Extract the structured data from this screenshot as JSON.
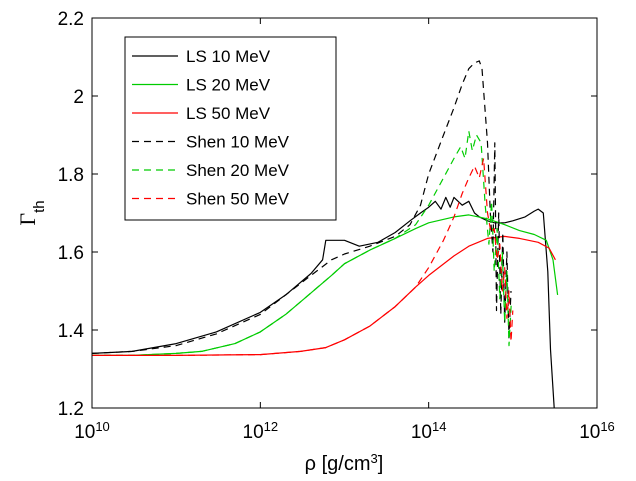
{
  "chart_data": {
    "type": "line",
    "xlabel_base": "ρ [g/cm",
    "xlabel_sup": "3",
    "xlabel_tail": "]",
    "ylabel_main": "Γ",
    "ylabel_sub": "th",
    "x_scale": "log",
    "xlim": [
      10000000000.0,
      1e+16
    ],
    "ylim": [
      1.2,
      2.2
    ],
    "x_ticks": [
      {
        "value": 10000000000.0,
        "base": "10",
        "exp": "10"
      },
      {
        "value": 1000000000000.0,
        "base": "10",
        "exp": "12"
      },
      {
        "value": 100000000000000.0,
        "base": "10",
        "exp": "14"
      },
      {
        "value": 1e+16,
        "base": "10",
        "exp": "16"
      }
    ],
    "y_ticks": [
      {
        "value": 1.2,
        "label": "1.2"
      },
      {
        "value": 1.4,
        "label": "1.4"
      },
      {
        "value": 1.6,
        "label": "1.6"
      },
      {
        "value": 1.8,
        "label": "1.8"
      },
      {
        "value": 2.0,
        "label": "2"
      },
      {
        "value": 2.2,
        "label": "2.2"
      }
    ],
    "grid": false,
    "legend_position": "top-left",
    "series": [
      {
        "name": "LS 10 MeV",
        "color": "#000000",
        "dash": "solid",
        "points": [
          [
            10000000000.0,
            1.34
          ],
          [
            30000000000.0,
            1.345
          ],
          [
            100000000000.0,
            1.365
          ],
          [
            300000000000.0,
            1.395
          ],
          [
            1000000000000.0,
            1.445
          ],
          [
            2000000000000.0,
            1.49
          ],
          [
            4000000000000.0,
            1.545
          ],
          [
            5500000000000.0,
            1.58
          ],
          [
            6000000000000.0,
            1.63
          ],
          [
            10000000000000.0,
            1.63
          ],
          [
            15000000000000.0,
            1.615
          ],
          [
            25000000000000.0,
            1.625
          ],
          [
            40000000000000.0,
            1.65
          ],
          [
            60000000000000.0,
            1.68
          ],
          [
            80000000000000.0,
            1.7
          ],
          [
            100000000000000.0,
            1.715
          ],
          [
            120000000000000.0,
            1.73
          ],
          [
            140000000000000.0,
            1.71
          ],
          [
            160000000000000.0,
            1.74
          ],
          [
            180000000000000.0,
            1.715
          ],
          [
            200000000000000.0,
            1.74
          ],
          [
            250000000000000.0,
            1.72
          ],
          [
            300000000000000.0,
            1.73
          ],
          [
            350000000000000.0,
            1.7
          ],
          [
            400000000000000.0,
            1.69
          ],
          [
            500000000000000.0,
            1.68
          ],
          [
            600000000000000.0,
            1.675
          ],
          [
            700000000000000.0,
            1.675
          ],
          [
            800000000000000.0,
            1.675
          ],
          [
            1000000000000000.0,
            1.68
          ],
          [
            1400000000000000.0,
            1.69
          ],
          [
            1800000000000000.0,
            1.705
          ],
          [
            2000000000000000.0,
            1.71
          ],
          [
            2300000000000000.0,
            1.7
          ],
          [
            2600000000000000.0,
            1.55
          ],
          [
            2800000000000000.0,
            1.35
          ],
          [
            3100000000000000.0,
            1.2
          ]
        ]
      },
      {
        "name": "LS 20 MeV",
        "color": "#00cc00",
        "dash": "solid",
        "points": [
          [
            10000000000.0,
            1.335
          ],
          [
            30000000000.0,
            1.335
          ],
          [
            100000000000.0,
            1.34
          ],
          [
            200000000000.0,
            1.345
          ],
          [
            500000000000.0,
            1.365
          ],
          [
            1000000000000.0,
            1.395
          ],
          [
            2000000000000.0,
            1.44
          ],
          [
            4000000000000.0,
            1.495
          ],
          [
            7000000000000.0,
            1.54
          ],
          [
            10000000000000.0,
            1.57
          ],
          [
            20000000000000.0,
            1.605
          ],
          [
            40000000000000.0,
            1.635
          ],
          [
            70000000000000.0,
            1.66
          ],
          [
            100000000000000.0,
            1.675
          ],
          [
            200000000000000.0,
            1.69
          ],
          [
            300000000000000.0,
            1.695
          ],
          [
            500000000000000.0,
            1.685
          ],
          [
            800000000000000.0,
            1.67
          ],
          [
            1200000000000000.0,
            1.655
          ],
          [
            1800000000000000.0,
            1.645
          ],
          [
            2500000000000000.0,
            1.63
          ],
          [
            3000000000000000.0,
            1.58
          ],
          [
            3400000000000000.0,
            1.49
          ]
        ]
      },
      {
        "name": "LS 50 MeV",
        "color": "#ff0000",
        "dash": "solid",
        "points": [
          [
            10000000000.0,
            1.335
          ],
          [
            100000000000.0,
            1.335
          ],
          [
            1000000000000.0,
            1.337
          ],
          [
            3000000000000.0,
            1.345
          ],
          [
            6000000000000.0,
            1.355
          ],
          [
            10000000000000.0,
            1.375
          ],
          [
            20000000000000.0,
            1.41
          ],
          [
            40000000000000.0,
            1.46
          ],
          [
            70000000000000.0,
            1.51
          ],
          [
            100000000000000.0,
            1.54
          ],
          [
            200000000000000.0,
            1.59
          ],
          [
            300000000000000.0,
            1.615
          ],
          [
            500000000000000.0,
            1.635
          ],
          [
            800000000000000.0,
            1.64
          ],
          [
            1200000000000000.0,
            1.635
          ],
          [
            2000000000000000.0,
            1.625
          ],
          [
            2700000000000000.0,
            1.61
          ],
          [
            3200000000000000.0,
            1.58
          ]
        ]
      },
      {
        "name": "Shen 10 MeV",
        "color": "#000000",
        "dash": "7,5",
        "points": [
          [
            10000000000.0,
            1.34
          ],
          [
            30000000000.0,
            1.345
          ],
          [
            100000000000.0,
            1.36
          ],
          [
            300000000000.0,
            1.39
          ],
          [
            1000000000000.0,
            1.44
          ],
          [
            2000000000000.0,
            1.49
          ],
          [
            4000000000000.0,
            1.54
          ],
          [
            7000000000000.0,
            1.58
          ],
          [
            10000000000000.0,
            1.595
          ],
          [
            20000000000000.0,
            1.615
          ],
          [
            40000000000000.0,
            1.64
          ],
          [
            60000000000000.0,
            1.67
          ],
          [
            80000000000000.0,
            1.72
          ],
          [
            100000000000000.0,
            1.8
          ],
          [
            150000000000000.0,
            1.9
          ],
          [
            200000000000000.0,
            1.97
          ],
          [
            250000000000000.0,
            2.03
          ],
          [
            300000000000000.0,
            2.07
          ],
          [
            350000000000000.0,
            2.085
          ],
          [
            400000000000000.0,
            2.09
          ],
          [
            430000000000000.0,
            2.07
          ],
          [
            500000000000000.0,
            1.88
          ],
          [
            540000000000000.0,
            1.7
          ],
          [
            580000000000000.0,
            1.6
          ],
          [
            610000000000000.0,
            1.88
          ],
          [
            640000000000000.0,
            1.45
          ],
          [
            680000000000000.0,
            1.7
          ],
          [
            720000000000000.0,
            1.44
          ],
          [
            760000000000000.0,
            1.65
          ],
          [
            800000000000000.0,
            1.42
          ],
          [
            850000000000000.0,
            1.6
          ],
          [
            900000000000000.0,
            1.38
          ],
          [
            950000000000000.0,
            1.5
          ]
        ]
      },
      {
        "name": "Shen 20 MeV",
        "color": "#00cc00",
        "dash": "7,5",
        "points": [
          [
            10000000000.0,
            1.335
          ],
          [
            30000000000.0,
            1.335
          ],
          [
            100000000000.0,
            1.34
          ],
          [
            200000000000.0,
            1.345
          ],
          [
            500000000000.0,
            1.365
          ],
          [
            1000000000000.0,
            1.395
          ],
          [
            2000000000000.0,
            1.44
          ],
          [
            4000000000000.0,
            1.495
          ],
          [
            7000000000000.0,
            1.54
          ],
          [
            10000000000000.0,
            1.57
          ],
          [
            20000000000000.0,
            1.605
          ],
          [
            40000000000000.0,
            1.635
          ],
          [
            70000000000000.0,
            1.67
          ],
          [
            100000000000000.0,
            1.72
          ],
          [
            150000000000000.0,
            1.79
          ],
          [
            200000000000000.0,
            1.84
          ],
          [
            240000000000000.0,
            1.87
          ],
          [
            270000000000000.0,
            1.84
          ],
          [
            300000000000000.0,
            1.91
          ],
          [
            330000000000000.0,
            1.86
          ],
          [
            370000000000000.0,
            1.9
          ],
          [
            420000000000000.0,
            1.88
          ],
          [
            470000000000000.0,
            1.72
          ],
          [
            520000000000000.0,
            1.62
          ],
          [
            560000000000000.0,
            1.73
          ],
          [
            600000000000000.0,
            1.55
          ],
          [
            650000000000000.0,
            1.66
          ],
          [
            700000000000000.0,
            1.48
          ],
          [
            750000000000000.0,
            1.6
          ],
          [
            800000000000000.0,
            1.42
          ],
          [
            850000000000000.0,
            1.55
          ],
          [
            900000000000000.0,
            1.36
          ],
          [
            960000000000000.0,
            1.47
          ]
        ]
      },
      {
        "name": "Shen 50 MeV",
        "color": "#ff0000",
        "dash": "7,5",
        "points": [
          [
            10000000000.0,
            1.335
          ],
          [
            100000000000.0,
            1.335
          ],
          [
            1000000000000.0,
            1.337
          ],
          [
            3000000000000.0,
            1.345
          ],
          [
            6000000000000.0,
            1.355
          ],
          [
            10000000000000.0,
            1.375
          ],
          [
            20000000000000.0,
            1.41
          ],
          [
            40000000000000.0,
            1.46
          ],
          [
            70000000000000.0,
            1.51
          ],
          [
            100000000000000.0,
            1.56
          ],
          [
            150000000000000.0,
            1.63
          ],
          [
            200000000000000.0,
            1.69
          ],
          [
            250000000000000.0,
            1.75
          ],
          [
            300000000000000.0,
            1.79
          ],
          [
            350000000000000.0,
            1.82
          ],
          [
            400000000000000.0,
            1.79
          ],
          [
            450000000000000.0,
            1.84
          ],
          [
            500000000000000.0,
            1.7
          ],
          [
            550000000000000.0,
            1.65
          ],
          [
            600000000000000.0,
            1.66
          ],
          [
            650000000000000.0,
            1.58
          ],
          [
            700000000000000.0,
            1.62
          ],
          [
            750000000000000.0,
            1.5
          ],
          [
            800000000000000.0,
            1.56
          ],
          [
            850000000000000.0,
            1.43
          ],
          [
            900000000000000.0,
            1.5
          ],
          [
            950000000000000.0,
            1.37
          ],
          [
            1000000000000000.0,
            1.45
          ]
        ]
      }
    ]
  }
}
